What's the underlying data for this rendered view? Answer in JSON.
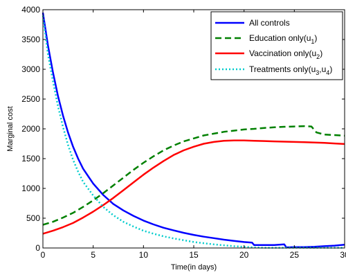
{
  "chart_data": {
    "type": "line",
    "title": "",
    "xlabel": "Time(in days)",
    "ylabel": "Marginal cost",
    "xlim": [
      0,
      30
    ],
    "ylim": [
      0,
      4000
    ],
    "xticks": [
      0,
      5,
      10,
      15,
      20,
      25,
      30
    ],
    "yticks": [
      0,
      500,
      1000,
      1500,
      2000,
      2500,
      3000,
      3500,
      4000
    ],
    "grid": false,
    "legend_position": "top-right",
    "series": [
      {
        "name": "All controls",
        "color": "#0000ff",
        "style": "solid",
        "x": [
          0,
          0.5,
          1,
          1.5,
          2,
          2.5,
          3,
          3.5,
          4,
          5,
          6,
          7,
          8,
          9,
          10,
          11,
          12,
          13,
          14,
          15,
          16,
          17,
          18,
          19,
          20,
          20.8,
          21,
          22,
          23,
          24,
          24.2,
          25,
          26,
          27,
          28,
          29,
          30
        ],
        "y": [
          3950,
          3400,
          2950,
          2550,
          2220,
          1940,
          1700,
          1500,
          1330,
          1080,
          890,
          740,
          630,
          540,
          460,
          395,
          340,
          295,
          255,
          220,
          190,
          165,
          140,
          120,
          100,
          90,
          50,
          50,
          50,
          60,
          10,
          15,
          15,
          20,
          30,
          40,
          55
        ]
      },
      {
        "name": "Education only(u₁)",
        "label_main": "Education only(u",
        "label_sub": "1",
        "label_end": ")",
        "color": "#008000",
        "style": "dashed",
        "x": [
          0,
          1,
          2,
          3,
          4,
          5,
          6,
          7,
          8,
          9,
          10,
          11,
          12,
          13,
          14,
          15,
          16,
          17,
          18,
          19,
          20,
          21,
          22,
          23,
          24,
          25,
          26,
          26.7,
          27.2,
          28,
          29,
          30
        ],
        "y": [
          390,
          440,
          510,
          590,
          690,
          800,
          920,
          1050,
          1180,
          1310,
          1430,
          1540,
          1640,
          1720,
          1790,
          1840,
          1890,
          1920,
          1950,
          1970,
          1990,
          2000,
          2015,
          2025,
          2035,
          2040,
          2045,
          2040,
          1940,
          1905,
          1895,
          1885
        ]
      },
      {
        "name": "Vaccination only(u₂)",
        "label_main": "Vaccination only(u",
        "label_sub": "2",
        "label_end": ")",
        "color": "#ff0000",
        "style": "solid",
        "x": [
          0,
          1,
          2,
          3,
          4,
          5,
          6,
          7,
          8,
          9,
          10,
          11,
          12,
          13,
          14,
          15,
          16,
          17,
          18,
          19,
          20,
          21,
          22,
          23,
          24,
          25,
          26,
          27,
          28,
          29,
          30
        ],
        "y": [
          240,
          290,
          350,
          420,
          510,
          610,
          720,
          840,
          970,
          1100,
          1230,
          1350,
          1460,
          1560,
          1640,
          1700,
          1750,
          1780,
          1800,
          1805,
          1805,
          1800,
          1795,
          1790,
          1785,
          1780,
          1775,
          1770,
          1765,
          1755,
          1745
        ]
      },
      {
        "name": "Treatments only(u₃,u₄)",
        "label_main": "Treatments only(u",
        "label_sub": "3",
        "label_mid": ",u",
        "label_sub2": "4",
        "label_end": ")",
        "color": "#00cccc",
        "style": "dotted",
        "x": [
          0,
          0.5,
          1,
          1.5,
          2,
          2.5,
          3,
          3.5,
          4,
          5,
          6,
          7,
          8,
          9,
          10,
          11,
          12,
          13,
          14,
          15,
          16,
          17,
          18,
          19,
          20,
          20.5,
          21,
          22,
          24,
          26,
          28,
          30
        ],
        "y": [
          3900,
          3250,
          2800,
          2380,
          2030,
          1730,
          1480,
          1280,
          1110,
          880,
          690,
          550,
          440,
          360,
          290,
          240,
          195,
          160,
          130,
          100,
          80,
          60,
          45,
          30,
          20,
          15,
          10,
          5,
          5,
          5,
          5,
          5
        ]
      }
    ]
  }
}
